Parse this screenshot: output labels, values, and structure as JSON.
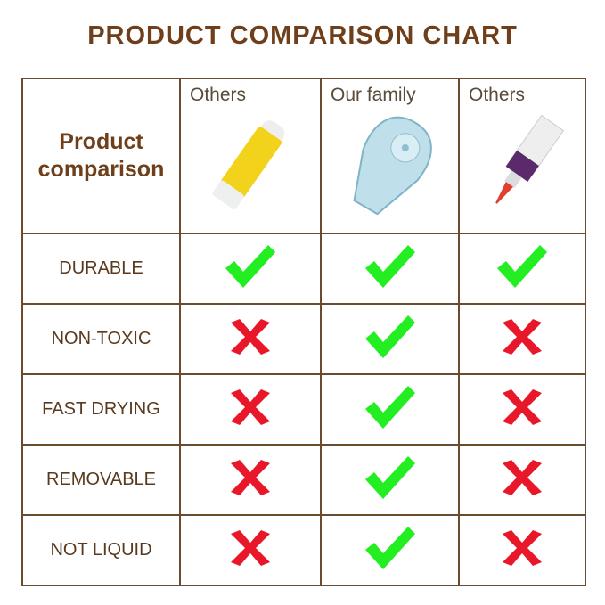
{
  "title": "PRODUCT COMPARISON CHART",
  "header": {
    "corner_line1": "Product",
    "corner_line2": "comparison",
    "columns": [
      "Others",
      "Our family",
      "Others"
    ]
  },
  "rows": [
    {
      "label": "DURABLE",
      "values": [
        "check",
        "check",
        "check"
      ]
    },
    {
      "label": "NON-TOXIC",
      "values": [
        "cross",
        "check",
        "cross"
      ]
    },
    {
      "label": "FAST DRYING",
      "values": [
        "cross",
        "check",
        "cross"
      ]
    },
    {
      "label": "REMOVABLE",
      "values": [
        "cross",
        "check",
        "cross"
      ]
    },
    {
      "label": "NOT LIQUID",
      "values": [
        "cross",
        "check",
        "cross"
      ]
    }
  ],
  "colors": {
    "brand": "#6e3f1a",
    "check": "#22ee22",
    "cross": "#e8182a",
    "border": "#6b4a2e"
  }
}
